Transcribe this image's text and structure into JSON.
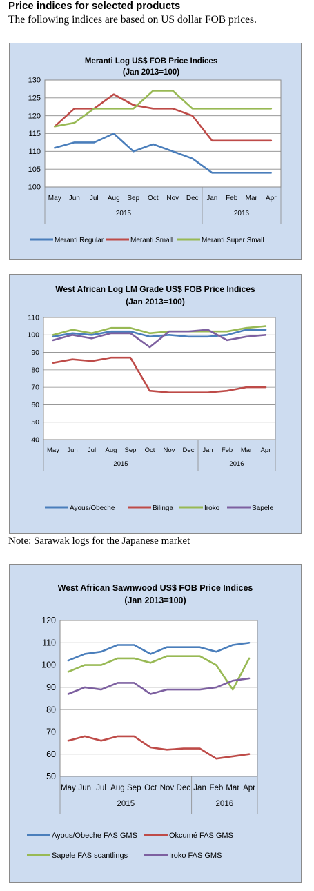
{
  "header": {
    "title": "Price indices for selected products",
    "subtitle": "The following indices are based on US dollar FOB prices."
  },
  "note": "Note: Sarawak logs for the Japanese market",
  "chart_data": [
    {
      "type": "line",
      "title": "Meranti Log US$ FOB Price Indices",
      "subtitle": "(Jan 2013=100)",
      "categories": [
        "May",
        "Jun",
        "Jul",
        "Aug",
        "Sep",
        "Oct",
        "Nov",
        "Dec",
        "Jan",
        "Feb",
        "Mar",
        "Apr"
      ],
      "year_labels": [
        "2015",
        "2016"
      ],
      "ylim": [
        100,
        130
      ],
      "yticks": [
        100,
        105,
        110,
        115,
        120,
        125,
        130
      ],
      "grid": "horizontal",
      "legend_position": "bottom",
      "series": [
        {
          "name": "Meranti Regular",
          "color": "#4a7ebb",
          "values": [
            111,
            112.5,
            112.5,
            115,
            110,
            112,
            110,
            108,
            104,
            104,
            104,
            104
          ]
        },
        {
          "name": "Meranti Small",
          "color": "#be4b48",
          "values": [
            117,
            122,
            122,
            126,
            123,
            122,
            122,
            120,
            113,
            113,
            113,
            113
          ]
        },
        {
          "name": "Meranti Super Small",
          "color": "#98b954",
          "values": [
            117,
            118,
            122,
            122,
            122,
            127,
            127,
            122,
            122,
            122,
            122,
            122
          ]
        }
      ]
    },
    {
      "type": "line",
      "title": "West African Log LM Grade US$ FOB Price Indices",
      "subtitle": "(Jan 2013=100)",
      "categories": [
        "May",
        "Jun",
        "Jul",
        "Aug",
        "Sep",
        "Oct",
        "Nov",
        "Dec",
        "Jan",
        "Feb",
        "Mar",
        "Apr"
      ],
      "year_labels": [
        "2015",
        "2016"
      ],
      "ylim": [
        40,
        110
      ],
      "yticks": [
        40,
        50,
        60,
        70,
        80,
        90,
        100,
        110
      ],
      "grid": "horizontal",
      "legend_position": "bottom",
      "series": [
        {
          "name": "Ayous/Obeche",
          "color": "#4a7ebb",
          "values": [
            99,
            101,
            100,
            102,
            102,
            99,
            100,
            99,
            99,
            100,
            103,
            103
          ]
        },
        {
          "name": "Bilinga",
          "color": "#be4b48",
          "values": [
            84,
            86,
            85,
            87,
            87,
            68,
            67,
            67,
            67,
            68,
            70,
            70
          ]
        },
        {
          "name": "Iroko",
          "color": "#98b954",
          "values": [
            100,
            103,
            101,
            104,
            104,
            101,
            102,
            102,
            102,
            102,
            104,
            105
          ]
        },
        {
          "name": "Sapele",
          "color": "#7d60a0",
          "values": [
            97,
            100,
            98,
            101,
            101,
            93,
            102,
            102,
            103,
            97,
            99,
            100
          ]
        }
      ]
    },
    {
      "type": "line",
      "title": "West African Sawnwood US$ FOB Price Indices",
      "subtitle": "(Jan 2013=100)",
      "categories": [
        "May",
        "Jun",
        "Jul",
        "Aug",
        "Sep",
        "Oct",
        "Nov",
        "Dec",
        "Jan",
        "Feb",
        "Mar",
        "Apr"
      ],
      "year_labels": [
        "2015",
        "2016"
      ],
      "ylim": [
        50,
        120
      ],
      "yticks": [
        50,
        60,
        70,
        80,
        90,
        100,
        110,
        120
      ],
      "grid": "horizontal",
      "legend_position": "bottom",
      "series": [
        {
          "name": "Ayous/Obeche FAS GMS",
          "color": "#4a7ebb",
          "values": [
            102,
            105,
            106,
            109,
            109,
            105,
            108,
            108,
            108,
            106,
            109,
            110
          ]
        },
        {
          "name": "Okcumé FAS GMS",
          "color": "#be4b48",
          "values": [
            66,
            68,
            66,
            68,
            68,
            63,
            62,
            62.5,
            62.5,
            58,
            59,
            60
          ]
        },
        {
          "name": "Sapele FAS scantlings",
          "color": "#98b954",
          "values": [
            97,
            100,
            100,
            103,
            103,
            101,
            104,
            104,
            104,
            100,
            89,
            103
          ]
        },
        {
          "name": "Iroko FAS GMS",
          "color": "#7d60a0",
          "values": [
            87,
            90,
            89,
            92,
            92,
            87,
            89,
            89,
            89,
            90,
            93,
            94
          ]
        }
      ]
    }
  ]
}
